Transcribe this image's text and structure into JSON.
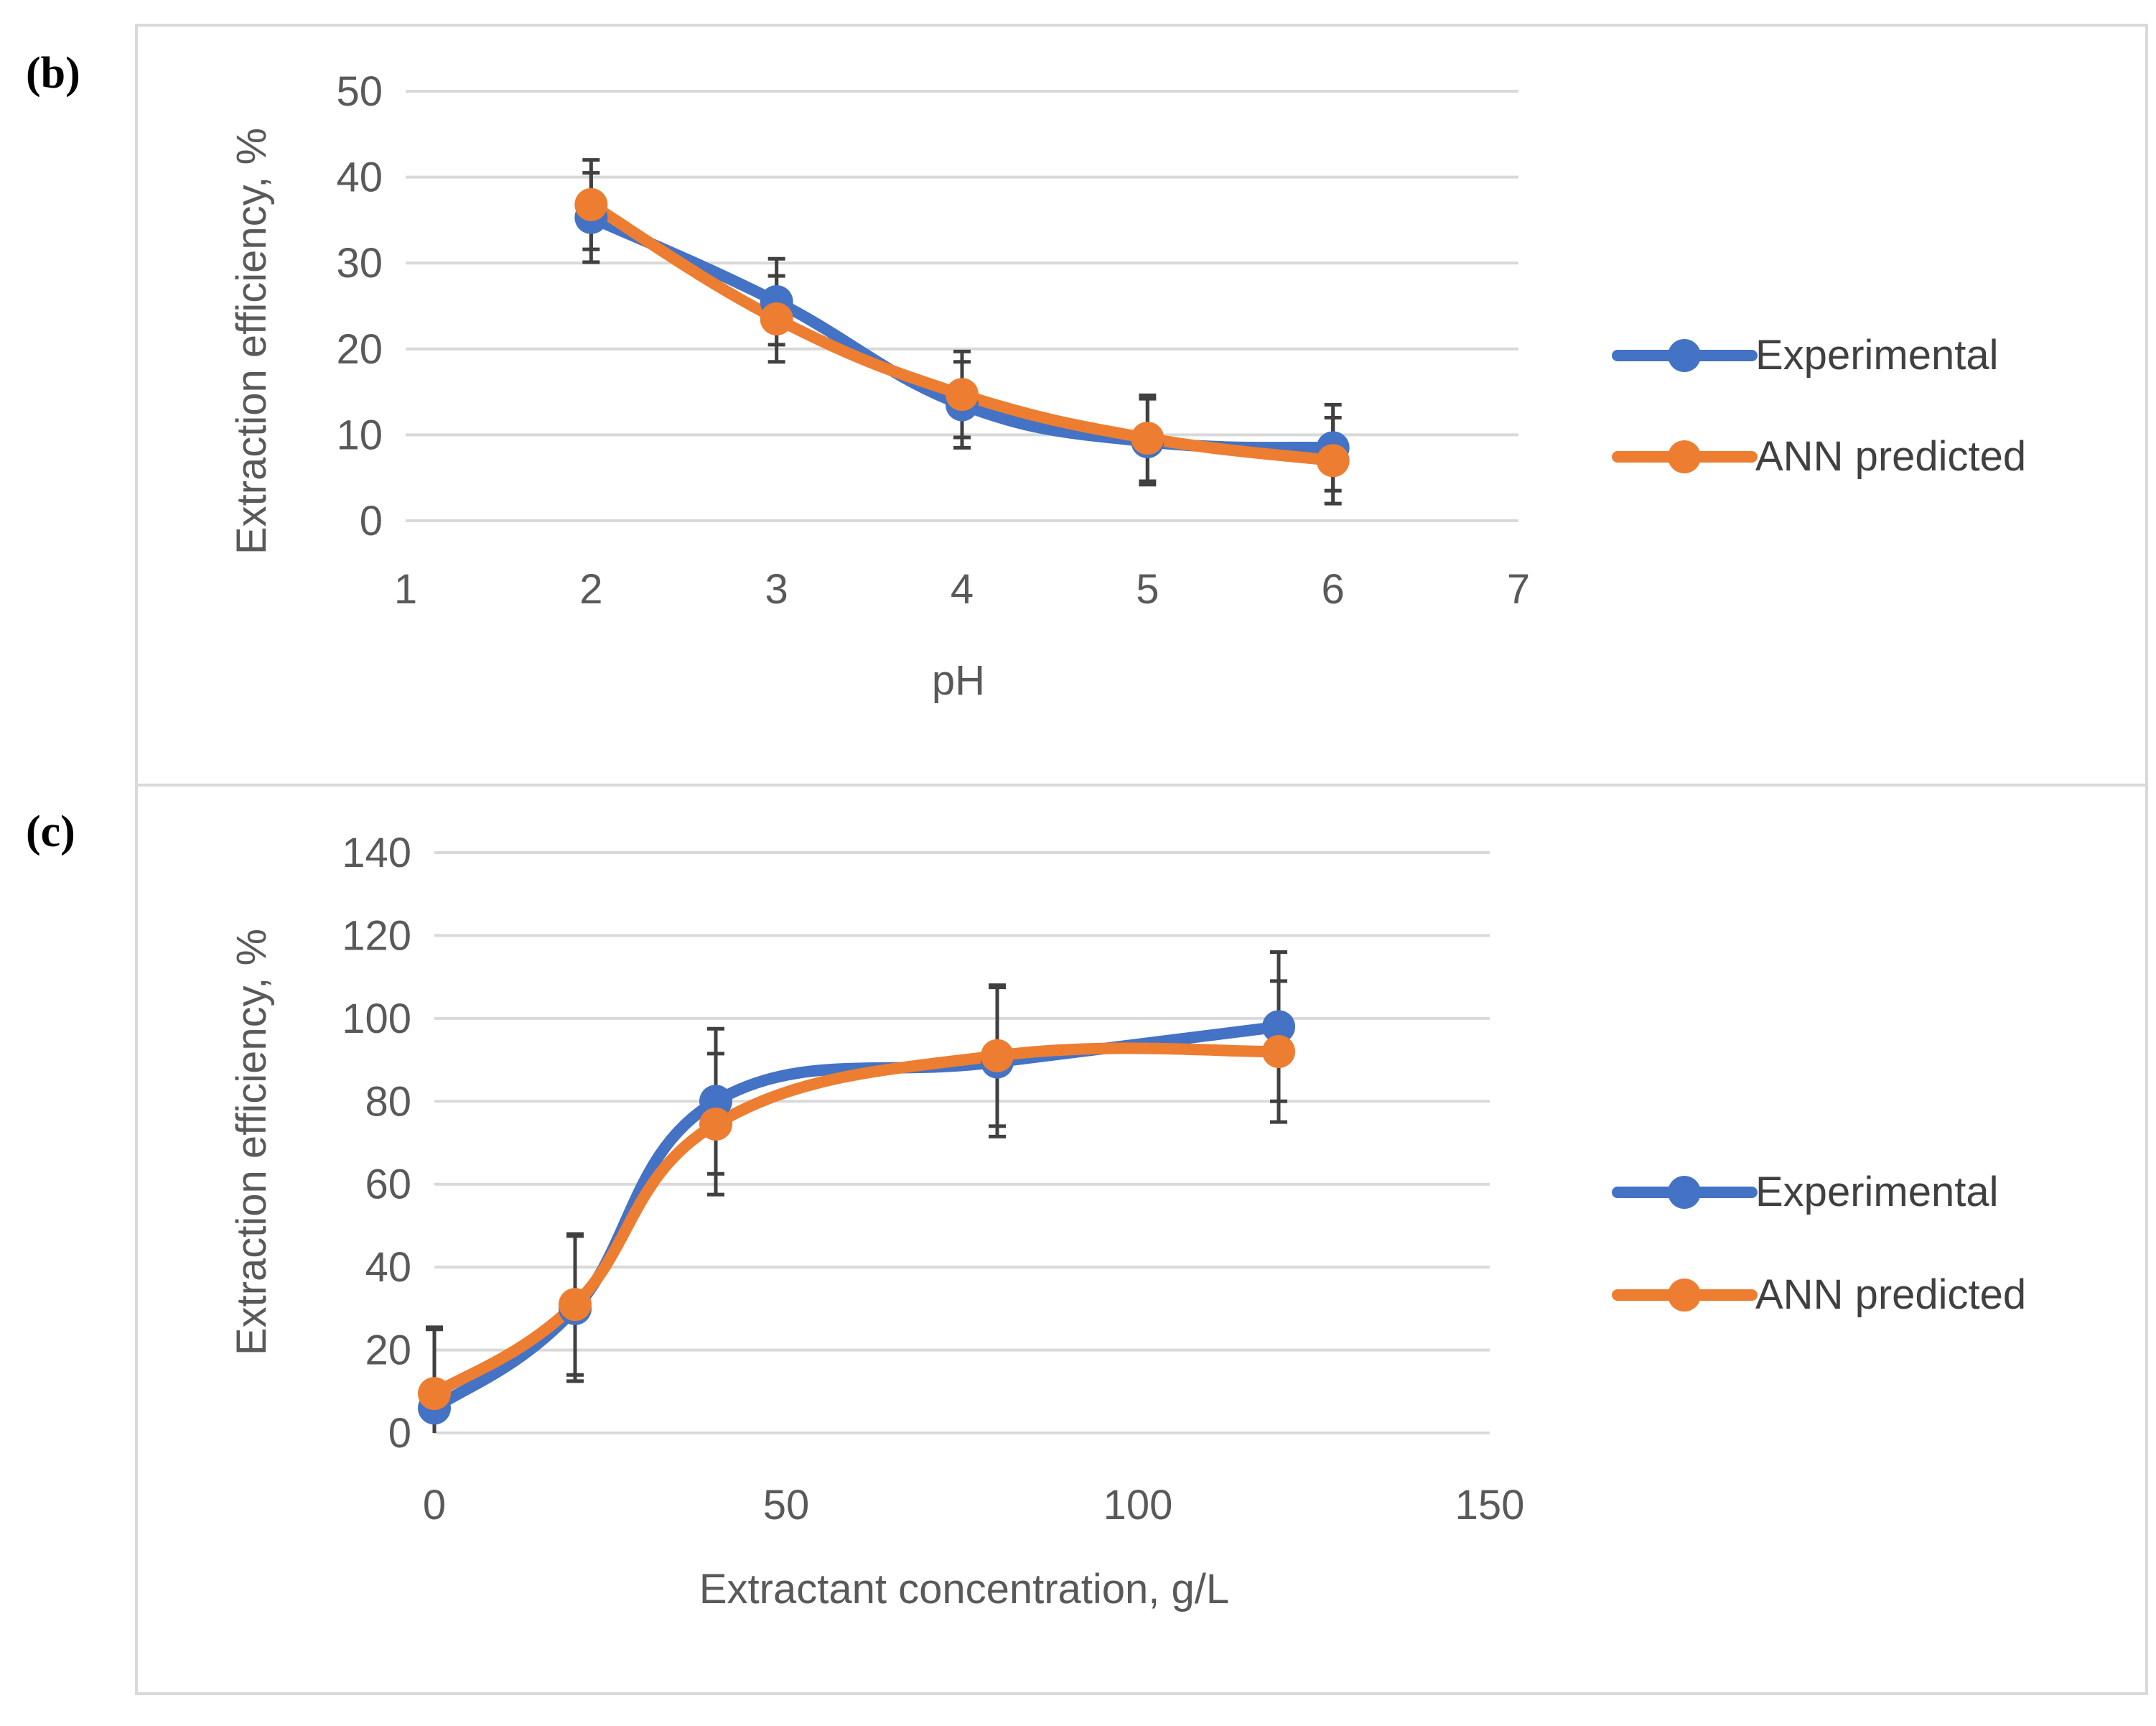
{
  "chart_data": [
    {
      "type": "line",
      "panel_label": "(b)",
      "xlabel": "pH",
      "ylabel": "Extraction efficiency, %",
      "xlim": [
        1,
        7
      ],
      "ylim": [
        0,
        50
      ],
      "xticks": [
        1,
        2,
        3,
        4,
        5,
        6,
        7
      ],
      "yticks": [
        0,
        10,
        20,
        30,
        40,
        50
      ],
      "grid": "horizontal",
      "legend_position": "right",
      "x": [
        2,
        3,
        4,
        5,
        6
      ],
      "series": [
        {
          "name": "Experimental",
          "color": "#4472C4",
          "values": [
            35.3,
            25.5,
            13.5,
            9.2,
            8.5
          ],
          "error": [
            5.2,
            5.0,
            5.0,
            5.0,
            5.0
          ]
        },
        {
          "name": "ANN predicted",
          "color": "#ED7D31",
          "values": [
            36.8,
            23.5,
            14.7,
            9.6,
            7.0
          ],
          "error": [
            5.2,
            5.0,
            5.0,
            5.0,
            5.0
          ]
        }
      ]
    },
    {
      "type": "line",
      "panel_label": "(c)",
      "xlabel": "Extractant concentration, g/L",
      "ylabel": "Extraction efficiency, %",
      "xlim": [
        0,
        150
      ],
      "ylim": [
        0,
        140
      ],
      "xticks": [
        0,
        50,
        100,
        150
      ],
      "yticks": [
        0,
        20,
        40,
        60,
        80,
        100,
        120,
        140
      ],
      "grid": "horizontal",
      "legend_position": "right",
      "x": [
        0,
        20,
        40,
        80,
        120
      ],
      "series": [
        {
          "name": "Experimental",
          "color": "#4472C4",
          "values": [
            6,
            30,
            80,
            89.5,
            98
          ],
          "error": [
            19.5,
            17.5,
            17.5,
            18,
            18
          ]
        },
        {
          "name": "ANN predicted",
          "color": "#ED7D31",
          "values": [
            9.5,
            31,
            74.5,
            91,
            92
          ],
          "error": [
            15.5,
            17,
            17,
            17,
            17
          ]
        }
      ]
    }
  ]
}
